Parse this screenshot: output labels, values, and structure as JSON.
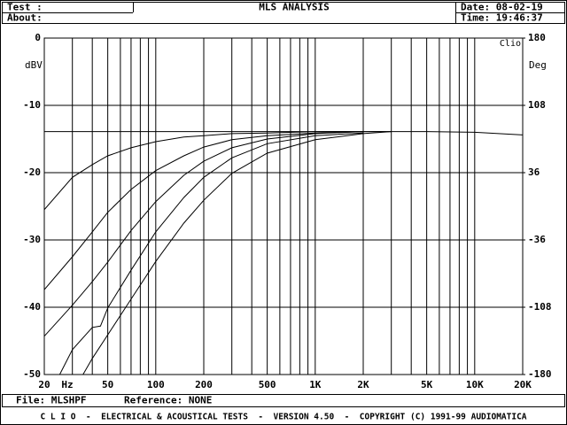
{
  "header": {
    "test": "Test :",
    "about": "About:",
    "title": "MLS ANALYSIS",
    "date": "Date: 08-02-19",
    "time": "Time: 19:46:37"
  },
  "footer": {
    "file": "File: MLSHPF",
    "reference": "Reference: NONE",
    "credits": "C L I O  -  ELECTRICAL & ACOUSTICAL TESTS  -  VERSION 4.50  -  COPYRIGHT (C) 1991-99 AUDIOMATICA"
  },
  "chart_data": {
    "type": "line",
    "ylabel": "dBV",
    "y2label": "Deg",
    "xlabel": "Hz",
    "brand": "Clio",
    "xscale": "log",
    "grid": true,
    "xlim": [
      20,
      20000
    ],
    "ylim": [
      -50,
      0
    ],
    "y2lim": [
      -180,
      180
    ],
    "xticks": [
      20,
      50,
      100,
      200,
      500,
      {
        "value": 1000,
        "label": "1K"
      },
      {
        "value": 2000,
        "label": "2K"
      },
      {
        "value": 5000,
        "label": "5K"
      },
      {
        "value": 10000,
        "label": "10K"
      },
      {
        "value": 20000,
        "label": "20K"
      }
    ],
    "xminorticks": [
      30,
      40,
      60,
      70,
      80,
      90,
      300,
      400,
      600,
      700,
      800,
      900,
      3000,
      4000,
      6000,
      7000,
      8000,
      9000
    ],
    "yticks": [
      -50,
      -40,
      -30,
      -20,
      -10,
      0
    ],
    "y2ticks": [
      -180,
      -108,
      -36,
      36,
      108,
      180
    ],
    "series": [
      {
        "color": "#000000",
        "x": [
          20,
          3000
        ],
        "values": [
          -13.9,
          -13.9
        ]
      },
      {
        "color": "#000000",
        "x": [
          20,
          30,
          40,
          50,
          70,
          100,
          150,
          200,
          300,
          500,
          1000,
          2000,
          3000,
          5000,
          10000,
          20000
        ],
        "values": [
          -25.5,
          -20.7,
          -18.8,
          -17.5,
          -16.3,
          -15.4,
          -14.7,
          -14.5,
          -14.2,
          -14.1,
          -13.9,
          -13.9,
          -13.9,
          -13.9,
          -14,
          -14.4
        ]
      },
      {
        "color": "#000000",
        "x": [
          20,
          30,
          40,
          50,
          70,
          100,
          150,
          200,
          300,
          500,
          1000,
          2000
        ],
        "values": [
          -37.4,
          -32.5,
          -28.8,
          -25.9,
          -22.5,
          -19.7,
          -17.5,
          -16.2,
          -15.1,
          -14.5,
          -14.1,
          -13.9
        ]
      },
      {
        "color": "#000000",
        "x": [
          20,
          30,
          40,
          50,
          70,
          100,
          150,
          200,
          300,
          500,
          1000,
          2000
        ],
        "values": [
          -44.3,
          -39.7,
          -36.2,
          -33.3,
          -28.6,
          -24.3,
          -20.4,
          -18.3,
          -16.3,
          -15,
          -14.2,
          -13.9
        ]
      },
      {
        "color": "#000000",
        "x": [
          25,
          30,
          40,
          45,
          50,
          70,
          100,
          150,
          200,
          300,
          500,
          1000,
          2000
        ],
        "values": [
          -50,
          -46.3,
          -43,
          -42.8,
          -40.1,
          -34.5,
          -28.8,
          -23.7,
          -20.7,
          -17.8,
          -15.7,
          -14.5,
          -14.1
        ]
      },
      {
        "color": "#000000",
        "x": [
          35,
          40,
          50,
          70,
          100,
          150,
          200,
          300,
          500,
          1000,
          2000,
          3000
        ],
        "values": [
          -50,
          -47.6,
          -44.1,
          -38.8,
          -33.2,
          -27.5,
          -24.1,
          -20.1,
          -17.1,
          -15.1,
          -14.2,
          -13.9
        ]
      }
    ]
  }
}
